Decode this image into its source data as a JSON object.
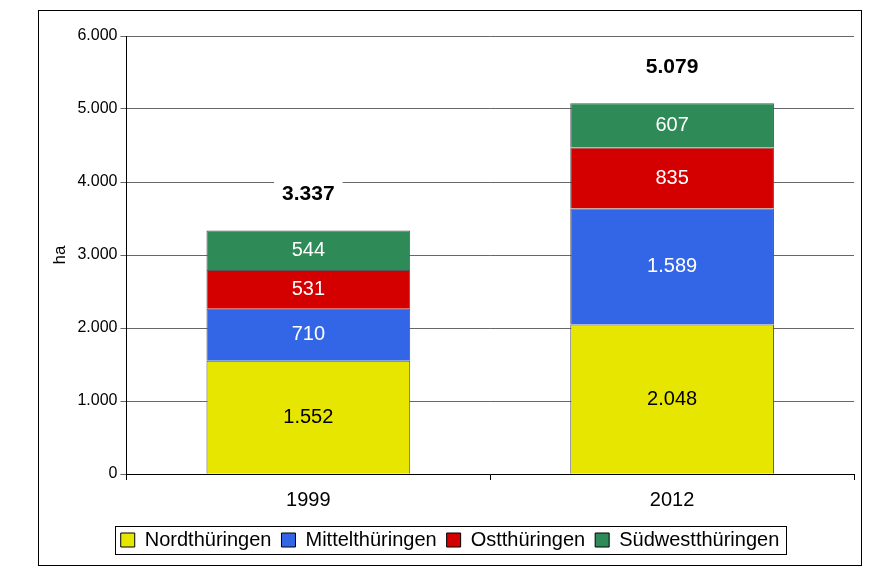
{
  "chart_data": {
    "type": "bar",
    "y_label": "ha",
    "categories": [
      "1999",
      "2012"
    ],
    "series": [
      {
        "name": "Nordthüringen",
        "color": "#e6e600",
        "values": [
          1552,
          2048
        ],
        "value_labels": [
          "1.552",
          "2.048"
        ]
      },
      {
        "name": "Mittelthüringen",
        "color": "#3366e6",
        "values": [
          710,
          1589
        ],
        "value_labels": [
          "710",
          "1.589"
        ]
      },
      {
        "name": "Ostthüringen",
        "color": "#d40000",
        "values": [
          531,
          835
        ],
        "value_labels": [
          "531",
          "835"
        ]
      },
      {
        "name": "Südwestthüringen",
        "color": "#2e8b57",
        "values": [
          544,
          607
        ],
        "value_labels": [
          "544",
          "607"
        ]
      }
    ],
    "totals": [
      3337,
      5079
    ],
    "total_labels": [
      "3.337",
      "5.079"
    ],
    "stacked": true,
    "data_labels": true,
    "legend": "bottom",
    "grid": true,
    "ylim": [
      0,
      6000
    ],
    "yticks": [
      0,
      {
        "value": 1000,
        "label": "1.000"
      },
      {
        "value": 2000,
        "label": "2.000"
      },
      {
        "value": 3000,
        "label": "3.000"
      },
      {
        "value": 4000,
        "label": "4.000"
      },
      {
        "value": 5000,
        "label": "5.000"
      },
      {
        "value": 6000,
        "label": "6.000"
      }
    ]
  }
}
